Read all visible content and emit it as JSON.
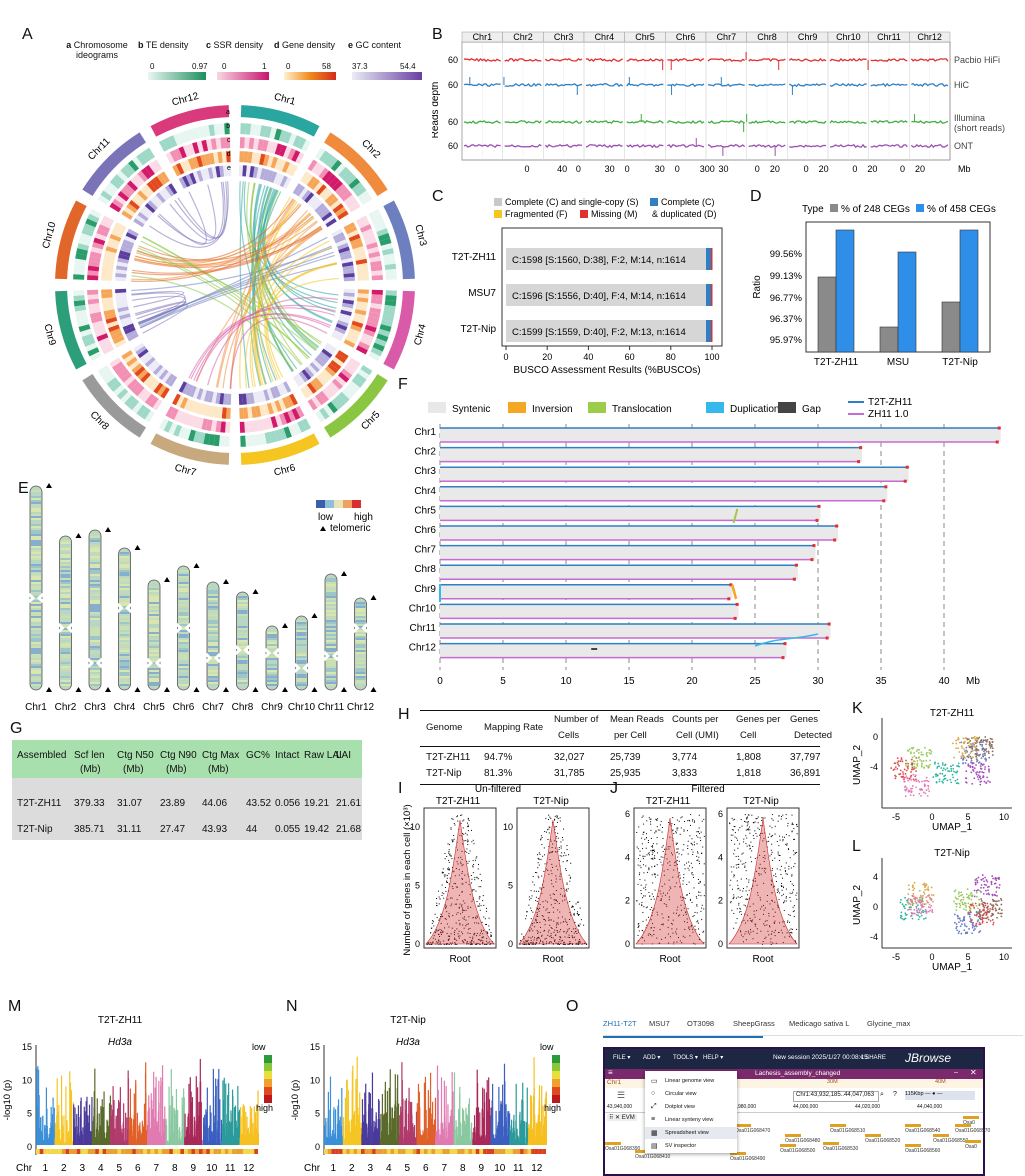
{
  "panels": {
    "A": {
      "label": "A",
      "tracks": [
        {
          "letter": "a",
          "name": "Chromosome ideograms"
        },
        {
          "letter": "b",
          "name": "TE density",
          "min": "0",
          "max": "0.97"
        },
        {
          "letter": "c",
          "name": "SSR density",
          "min": "0",
          "max": "1"
        },
        {
          "letter": "d",
          "name": "Gene density",
          "min": "0",
          "max": "58"
        },
        {
          "letter": "e",
          "name": "GC content",
          "min": "37.3",
          "max": "54.4"
        }
      ],
      "ring_letters": [
        "a",
        "b",
        "c",
        "d",
        "e"
      ],
      "chromosomes": [
        "Chr1",
        "Chr2",
        "Chr3",
        "Chr4",
        "Chr5",
        "Chr6",
        "Chr7",
        "Chr8",
        "Chr9",
        "Chr10",
        "Chr11",
        "Chr12"
      ],
      "colors": [
        "#2aa6a0",
        "#f08a3c",
        "#6e7fc0",
        "#d85aa8",
        "#8ac641",
        "#f5c522",
        "#c8a97e",
        "#9a9a9a",
        "#2c9e7a",
        "#e0662a",
        "#7b73b8",
        "#d83a7c"
      ]
    },
    "B": {
      "label": "B",
      "chromosomes": [
        "Chr1",
        "Chr2",
        "Chr3",
        "Chr4",
        "Chr5",
        "Chr6",
        "Chr7",
        "Chr8",
        "Chr9",
        "Chr10",
        "Chr11",
        "Chr12"
      ],
      "ylabel": "Reads depth",
      "tracks": [
        {
          "name": "Pacbio HiFi",
          "value": "60",
          "color": "#e03030"
        },
        {
          "name": "HiC",
          "value": "60",
          "color": "#2f7fc2"
        },
        {
          "name": "Illumina\n(short reads)",
          "name1": "Illumina",
          "name2": "(short reads)",
          "value": "60",
          "color": "#3fae3f"
        },
        {
          "name": "ONT",
          "value": "60",
          "color": "#9a4fb0"
        }
      ],
      "xticks": [
        "0",
        "40",
        "0",
        "30",
        "0",
        "30",
        "0",
        "30",
        "0",
        "20",
        "0",
        "20",
        "0",
        "30",
        "0",
        "20",
        "0",
        "20",
        "0",
        "20",
        "0",
        "20",
        "0",
        "20"
      ],
      "xticks_vis": [
        "0",
        "40",
        "0",
        "30",
        "0",
        "30",
        "0",
        "300",
        "30",
        "0",
        "20",
        "0",
        "20",
        "0",
        "20",
        "0",
        "20"
      ],
      "xunit": "Mb"
    },
    "C": {
      "label": "C",
      "legend": [
        "Complete (C) and single-copy (S)",
        "Complete (C)",
        "Fragmented (F)",
        "Missing (M)",
        "& duplicated (D)"
      ],
      "genomes": [
        "T2T-ZH11",
        "MSU7",
        "T2T-Nip"
      ],
      "texts": [
        "C:1598 [S:1560, D:38], F:2, M:14, n:1614",
        "C:1596 [S:1556, D:40], F:4, M:14, n:1614",
        "C:1599 [S:1559, D:40], F:2, M:13, n:1614"
      ],
      "xticks": [
        "0",
        "20",
        "40",
        "60",
        "80",
        "100"
      ],
      "xlabel": "BUSCO Assessment Results (%BUSCOs)"
    },
    "D": {
      "label": "D",
      "legend_title": "Type",
      "series_names": [
        "% of 248 CEGs",
        "% of 458 CEGs"
      ],
      "yticks": [
        "99.56%",
        "99.13%",
        "96.77%",
        "96.37%",
        "95.97%"
      ],
      "ylabel": "Ratio",
      "categories": [
        "T2T-ZH11",
        "MSU",
        "T2T-Nip"
      ]
    },
    "E": {
      "label": "E",
      "chromosomes": [
        "Chr1",
        "Chr2",
        "Chr3",
        "Chr4",
        "Chr5",
        "Chr6",
        "Chr7",
        "Chr8",
        "Chr9",
        "Chr10",
        "Chr11",
        "Chr12"
      ],
      "legend_low": "low",
      "legend_high": "high",
      "legend_tel": "telomeric"
    },
    "F": {
      "label": "F",
      "legend": [
        "Syntenic",
        "Inversion",
        "Translocation",
        "Duplication",
        "Gap"
      ],
      "legend_colors": [
        "#e8e8e8",
        "#f5a623",
        "#9ccc4a",
        "#35b8ec",
        "#444444"
      ],
      "genome_legend": [
        "T2T-ZH11",
        "ZH11  1.0"
      ],
      "chromosomes": [
        "Chr1",
        "Chr2",
        "Chr3",
        "Chr4",
        "Chr5",
        "Chr6",
        "Chr7",
        "Chr8",
        "Chr9",
        "Chr10",
        "Chr11",
        "Chr12"
      ],
      "xticks": [
        "0",
        "5",
        "10",
        "15",
        "20",
        "25",
        "30",
        "35",
        "40"
      ],
      "xunit": "Mb"
    },
    "G": {
      "label": "G",
      "headers": [
        "Assembled",
        "Scf  len\n(Mb)",
        "Ctg N50\n(Mb)",
        "Ctg N90\n(Mb)",
        "Ctg Max\n(Mb)",
        "GC%",
        "Intact",
        "Raw LAI",
        "LAI"
      ],
      "h1": [
        "Assembled",
        "Scf  len",
        "Ctg N50",
        "Ctg N90",
        "Ctg Max",
        "GC%",
        "Intact",
        "Raw LAI",
        "LAI"
      ],
      "h2": [
        "",
        "(Mb)",
        "(Mb)",
        "(Mb)",
        "(Mb)",
        "",
        "",
        "",
        ""
      ],
      "rows": [
        [
          "T2T-ZH11",
          "379.33",
          "31.07",
          "23.89",
          "44.06",
          "43.52",
          "0.056",
          "19.21",
          "21.61"
        ],
        [
          "T2T-Nip",
          "385.71",
          "31.11",
          "27.47",
          "43.93",
          "44",
          "0.055",
          "19.42",
          "21.68"
        ]
      ]
    },
    "H": {
      "label": "H",
      "h1": [
        "Genome",
        "Mapping Rate",
        "Number of",
        "Mean Reads",
        "Counts per",
        "Genes per",
        "Genes"
      ],
      "h2": [
        "",
        "",
        "Cells",
        "per Cell",
        "Cell (UMI)",
        "Cell",
        "Detected"
      ],
      "rows": [
        [
          "T2T-ZH11",
          "94.7%",
          "32,027",
          "25,739",
          "3,774",
          "1,808",
          "37,797"
        ],
        [
          "T2T-Nip",
          "81.3%",
          "31,785",
          "25,935",
          "3,833",
          "1,818",
          "36,891"
        ]
      ]
    },
    "I": {
      "label": "I",
      "title": "Un-filtered",
      "groups": [
        "T2T-ZH11",
        "T2T-Nip"
      ],
      "xlabel": "Root",
      "ylabel": "Number of genes in each cell (×10³)",
      "yticks": [
        "0",
        "5",
        "10"
      ]
    },
    "J": {
      "label": "J",
      "title": "Filtered",
      "groups": [
        "T2T-ZH11",
        "T2T-Nip"
      ],
      "xlabel": "Root",
      "yticks": [
        "0",
        "2",
        "4",
        "6"
      ]
    },
    "K": {
      "label": "K",
      "title": "T2T-ZH11",
      "xlabel": "UMAP_1",
      "ylabel": "UMAP_2",
      "xticks": [
        "-5",
        "0",
        "5",
        "10"
      ],
      "yticks": [
        "0",
        "-4"
      ]
    },
    "L": {
      "label": "L",
      "title": "T2T-Nip",
      "xlabel": "UMAP_1",
      "ylabel": "UMAP_2",
      "xticks": [
        "-5",
        "0",
        "5",
        "10"
      ],
      "yticks": [
        "4",
        "0",
        "-4"
      ]
    },
    "M": {
      "label": "M",
      "title": "T2T-ZH11",
      "gene": "Hd3a",
      "ylabel": "-log10 (p)",
      "yticks": [
        "0",
        "5",
        "10",
        "15"
      ],
      "chr_prefix": "Chr",
      "chrs": [
        "1",
        "2",
        "3",
        "4",
        "5",
        "6",
        "7",
        "8",
        "9",
        "10",
        "11",
        "12"
      ],
      "legend_low": "low",
      "legend_high": "high"
    },
    "N": {
      "label": "N",
      "title": "T2T-Nip",
      "gene": "Hd3a",
      "ylabel": "-log10 (p)",
      "yticks": [
        "0",
        "5",
        "10",
        "15"
      ],
      "chr_prefix": "Chr",
      "chrs": [
        "1",
        "2",
        "3",
        "4",
        "5",
        "6",
        "7",
        "8",
        "9",
        "10",
        "11",
        "12"
      ],
      "legend_low": "low",
      "legend_high": "high"
    },
    "O": {
      "label": "O",
      "tabs": [
        "ZH11-T2T",
        "MSU7",
        "OT3098",
        "SheepGrass",
        "Medicago sativa L",
        "Glycine_max"
      ],
      "menu": [
        "FILE ▾",
        "ADD ▾",
        "TOOLS ▾",
        "HELP ▾"
      ],
      "session": "New session 2025/1/27 00:08:15",
      "share": "SHARE",
      "brand": "JBrowse",
      "view_title": "Lachesis_assembly_changed",
      "chr": "Chr1",
      "locus": "Chr1:43,932,185..44,047,063",
      "zoom": "115Kbp",
      "ruler": [
        "43,940,000",
        "43,960,000",
        "43,980,000",
        "44,000,000",
        "44,020,000",
        "44,040,000"
      ],
      "add_items": [
        "Linear genome view",
        "Circular view",
        "Dotplot view",
        "Linear synteny view",
        "Spreadsheet view",
        "SV inspector"
      ],
      "track_label": "EVM",
      "genes": [
        "Osa01G068470",
        "Osa01G068480",
        "Osa01G068510",
        "Osa01G068520",
        "Osa01G068540",
        "Osa01G068550",
        "Osa01G068570",
        "Osa01G068390",
        "Osa01G068410",
        "Osa01G068460",
        "Osa01G068490",
        "Osa01G068500",
        "Osa01G068530",
        "Osa01G068560",
        "Osa0",
        "Osa0"
      ]
    }
  }
}
